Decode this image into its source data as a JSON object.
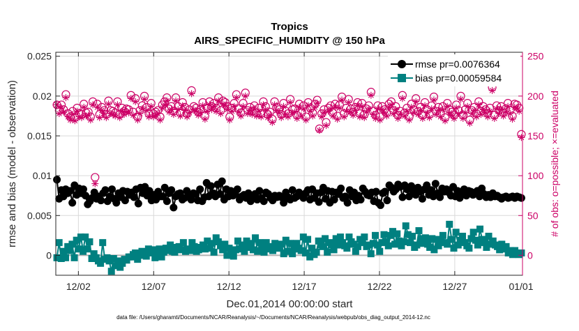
{
  "chart_data": {
    "type": "line",
    "title": "Tropics",
    "subtitle": "AIRS_SPECIFIC_HUMIDITY @ 150 hPa",
    "xlabel": "Dec.01,2014 00:00:00 start",
    "ylabel": "rmse and bias (model - observation)",
    "ylabel_right": "# of obs: o=possible; ×=evaluated",
    "footnote": "data file: /Users/gharamti/Documents/NCAR/Reanalysis/~/Documents/NCAR/Reanalysis/webpub/obs_diag_output_2014-12.nc",
    "xlim": [
      0.5,
      31.5
    ],
    "ylim": [
      -0.0025,
      0.0255
    ],
    "ylim_right": [
      -25,
      255
    ],
    "x_ticks": [
      {
        "v": 2,
        "label": "12/02"
      },
      {
        "v": 7,
        "label": "12/07"
      },
      {
        "v": 12,
        "label": "12/12"
      },
      {
        "v": 17,
        "label": "12/17"
      },
      {
        "v": 22,
        "label": "12/22"
      },
      {
        "v": 27,
        "label": "12/27"
      },
      {
        "v": 32,
        "label": "01/01"
      }
    ],
    "y_ticks": [
      {
        "v": 0,
        "label": "0"
      },
      {
        "v": 0.005,
        "label": "0.005"
      },
      {
        "v": 0.01,
        "label": "0.01"
      },
      {
        "v": 0.015,
        "label": "0.015"
      },
      {
        "v": 0.02,
        "label": "0.02"
      },
      {
        "v": 0.025,
        "label": "0.025"
      }
    ],
    "y_ticks_right": [
      {
        "v": 0,
        "label": "0"
      },
      {
        "v": 50,
        "label": "50"
      },
      {
        "v": 100,
        "label": "100"
      },
      {
        "v": 150,
        "label": "150"
      },
      {
        "v": 200,
        "label": "200"
      },
      {
        "v": 250,
        "label": "250"
      }
    ],
    "legend_position": "top-right",
    "zero_line": 0,
    "series": [
      {
        "name": "rmse pr=0.0076364",
        "color": "#000000",
        "marker": "circle",
        "axis": "left",
        "values": [
          0.0095,
          0.0071,
          0.0082,
          0.0074,
          0.0083,
          0.0078,
          0.0081,
          0.0066,
          0.0088,
          0.0076,
          0.0084,
          0.0078,
          0.0083,
          0.0075,
          0.0064,
          0.0068,
          0.0072,
          0.0079,
          0.0071,
          0.0074,
          0.0069,
          0.0078,
          0.0082,
          0.0068,
          0.0074,
          0.0083,
          0.0071,
          0.0066,
          0.0078,
          0.0073,
          0.0081,
          0.0069,
          0.008,
          0.0076,
          0.0079,
          0.0073,
          0.0083,
          0.0065,
          0.0085,
          0.0078,
          0.0086,
          0.0075,
          0.0081,
          0.0069,
          0.0076,
          0.007,
          0.008,
          0.0074,
          0.0074,
          0.0085,
          0.0068,
          0.0078,
          0.0082,
          0.006,
          0.0074,
          0.0077,
          0.0078,
          0.007,
          0.0072,
          0.0081,
          0.0074,
          0.007,
          0.0078,
          0.0077,
          0.0069,
          0.0083,
          0.0068,
          0.0073,
          0.0091,
          0.0074,
          0.0087,
          0.0078,
          0.0074,
          0.0089,
          0.0077,
          0.0093,
          0.007,
          0.0083,
          0.0074,
          0.0081,
          0.0075,
          0.0077,
          0.0083,
          0.007,
          0.0074,
          0.0076,
          0.0072,
          0.0078,
          0.0068,
          0.0075,
          0.0077,
          0.007,
          0.0081,
          0.0072,
          0.0068,
          0.0079,
          0.0077,
          0.0072,
          0.0069,
          0.0075,
          0.0073,
          0.0075,
          0.0073,
          0.0066,
          0.0079,
          0.0073,
          0.007,
          0.0082,
          0.0072,
          0.0074,
          0.0079,
          0.0076,
          0.0072,
          0.0078,
          0.0082,
          0.007,
          0.0083,
          0.0072,
          0.0078,
          0.0067,
          0.0079,
          0.0085,
          0.0071,
          0.0081,
          0.0066,
          0.008,
          0.007,
          0.0079,
          0.0077,
          0.0084,
          0.0072,
          0.0074,
          0.0066,
          0.0082,
          0.0074,
          0.0079,
          0.0069,
          0.0075,
          0.007,
          0.0084,
          0.008,
          0.0076,
          0.0075,
          0.0079,
          0.0068,
          0.008,
          0.0066,
          0.0063,
          0.0078,
          0.008,
          0.0069,
          0.0088,
          0.0085,
          0.008,
          0.0083,
          0.0089,
          0.0086,
          0.0073,
          0.0088,
          0.0083,
          0.0074,
          0.0087,
          0.008,
          0.0076,
          0.0085,
          0.008,
          0.0071,
          0.0083,
          0.0088,
          0.0076,
          0.0082,
          0.0074,
          0.009,
          0.0078,
          0.0073,
          0.0084,
          0.008,
          0.0083,
          0.0079,
          0.0075,
          0.0086,
          0.0074,
          0.0081,
          0.0072,
          0.0079,
          0.0083,
          0.0075,
          0.0081,
          0.008,
          0.0076,
          0.0079,
          0.0081,
          0.0074,
          0.0084,
          0.0077,
          0.0073,
          0.0076,
          0.0073,
          0.0078,
          0.0074,
          0.0075,
          0.0073,
          0.0071,
          0.0073,
          0.0074,
          0.0072,
          0.0073,
          0.0074,
          0.0072,
          0.0074,
          0.0073,
          0.0072
        ]
      },
      {
        "name": "bias pr=0.00059584",
        "color": "#008080",
        "marker": "square",
        "axis": "left",
        "values": [
          -0.0003,
          0.0016,
          -0.0004,
          0.0005,
          -0.0003,
          0.0011,
          0.0006,
          0.0014,
          -0.0003,
          0.0019,
          0.0008,
          0.0023,
          0.0005,
          0.0023,
          0.0008,
          0.0017,
          -0.0004,
          0.0002,
          -0.0003,
          -0.0007,
          -0.001,
          0.0016,
          -0.0005,
          -0.0003,
          -0.0007,
          -0.002,
          -0.0004,
          -0.0013,
          -0.0007,
          -0.0015,
          -0.001,
          -0.0005,
          -0.0006,
          -0.0002,
          -0.0002,
          0.0001,
          0.0003,
          -0.0005,
          0.0,
          0.0005,
          0.0004,
          -0.0001,
          0.0008,
          0.0003,
          0.0007,
          -0.0003,
          0.0005,
          0.0008,
          -0.0002,
          0.0004,
          0.0009,
          0.0006,
          0.0013,
          0.0005,
          0.0004,
          0.001,
          0.0011,
          0.0007,
          0.0016,
          0.0005,
          0.0008,
          0.0006,
          0.0016,
          0.0011,
          0.0005,
          0.0007,
          0.001,
          0.0013,
          0.0008,
          0.0018,
          0.0009,
          0.0015,
          0.0004,
          0.0022,
          0.0017,
          0.0012,
          0.0007,
          0.0014,
          0.0,
          0.0009,
          0.0005,
          -0.0001,
          0.0007,
          0.0018,
          0.0008,
          0.0013,
          0.0005,
          0.0018,
          0.001,
          0.0015,
          0.0007,
          0.0022,
          0.0005,
          0.0016,
          0.001,
          0.0004,
          0.0016,
          0.0008,
          0.0011,
          0.0006,
          0.0015,
          0.0009,
          0.0009,
          0.0014,
          0.0002,
          0.0019,
          0.0005,
          0.0015,
          0.0002,
          0.0008,
          0.0015,
          0.0009,
          0.0006,
          0.0023,
          0.0003,
          0.002,
          -0.0002,
          0.0009,
          0.0001,
          0.0004,
          0.0018,
          0.0013,
          0.0011,
          0.0021,
          0.0004,
          0.0016,
          0.0013,
          0.0007,
          0.0021,
          0.0013,
          0.0023,
          0.0016,
          0.0012,
          0.0009,
          0.0023,
          0.0017,
          0.0014,
          0.0005,
          0.0011,
          0.002,
          0.0016,
          0.0023,
          0.0011,
          0.0013,
          0.0002,
          0.0015,
          0.0025,
          0.0013,
          0.0005,
          0.0016,
          0.0026,
          0.0017,
          0.0012,
          0.0025,
          0.003,
          0.0014,
          0.0027,
          0.0018,
          0.0012,
          0.0017,
          0.0037,
          0.0026,
          0.0016,
          0.0024,
          0.001,
          0.0013,
          0.0031,
          0.0021,
          0.0015,
          0.0022,
          0.0014,
          0.001,
          0.0021,
          0.0007,
          0.002,
          0.0012,
          0.0018,
          0.0025,
          0.0016,
          0.0014,
          0.0039,
          0.002,
          0.0009,
          0.0029,
          0.0013,
          0.0019,
          0.0024,
          0.0016,
          0.0012,
          0.0009,
          0.0021,
          0.0029,
          0.0019,
          0.0013,
          0.0033,
          0.002,
          0.0016,
          0.001,
          0.0024,
          0.0014,
          0.0018,
          0.0013,
          0.0011,
          0.0007,
          0.0014,
          0.0008,
          0.0011,
          0.0003,
          0.0006,
          0.0001,
          0.0006,
          0.0002,
          0.0001,
          0.0003
        ]
      },
      {
        "name": "obs possible",
        "color": "#cc0066",
        "marker": "circle-open",
        "axis": "right",
        "values": [
          189,
          182,
          189,
          183,
          202,
          178,
          174,
          181,
          173,
          185,
          178,
          177,
          190,
          179,
          180,
          174,
          193,
          98,
          190,
          177,
          186,
          182,
          177,
          194,
          182,
          181,
          179,
          193,
          177,
          185,
          181,
          184,
          183,
          201,
          180,
          197,
          174,
          182,
          188,
          200,
          186,
          178,
          191,
          178,
          180,
          182,
          174,
          189,
          193,
          198,
          184,
          187,
          181,
          198,
          187,
          179,
          192,
          186,
          178,
          183,
          207,
          187,
          185,
          180,
          183,
          192,
          175,
          185,
          193,
          187,
          191,
          185,
          198,
          182,
          194,
          192,
          187,
          174,
          185,
          191,
          202,
          184,
          179,
          191,
          204,
          182,
          186,
          181,
          188,
          179,
          185,
          178,
          193,
          187,
          177,
          180,
          171,
          193,
          186,
          183,
          177,
          191,
          181,
          178,
          196,
          183,
          184,
          176,
          190,
          179,
          188,
          174,
          192,
          185,
          179,
          190,
          195,
          159,
          178,
          183,
          167,
          185,
          188,
          179,
          190,
          175,
          189,
          199,
          178,
          185,
          196,
          184,
          180,
          186,
          192,
          178,
          191,
          177,
          184,
          188,
          205,
          181,
          176,
          188,
          174,
          187,
          183,
          179,
          190,
          193,
          182,
          187,
          176,
          181,
          201,
          179,
          185,
          174,
          190,
          183,
          197,
          181,
          186,
          176,
          192,
          183,
          177,
          188,
          199,
          181,
          186,
          178,
          187,
          173,
          191,
          183,
          180,
          176,
          189,
          182,
          200,
          176,
          183,
          191,
          170,
          182,
          186,
          178,
          193,
          181,
          187,
          183,
          178,
          185,
          211,
          176,
          188,
          182,
          187,
          179,
          184,
          191,
          182,
          175,
          190,
          189,
          185,
          152
        ]
      },
      {
        "name": "obs evaluated",
        "color": "#cc0066",
        "marker": "asterisk",
        "axis": "right",
        "values": [
          189,
          178,
          185,
          180,
          198,
          174,
          170,
          177,
          169,
          181,
          174,
          173,
          186,
          175,
          176,
          170,
          189,
          90,
          186,
          173,
          182,
          178,
          173,
          190,
          178,
          177,
          175,
          189,
          173,
          181,
          177,
          180,
          179,
          197,
          176,
          193,
          170,
          178,
          184,
          196,
          182,
          174,
          187,
          174,
          176,
          178,
          170,
          185,
          189,
          194,
          180,
          183,
          177,
          194,
          183,
          175,
          188,
          182,
          174,
          179,
          203,
          183,
          181,
          176,
          179,
          188,
          171,
          181,
          189,
          183,
          187,
          181,
          194,
          178,
          190,
          188,
          183,
          170,
          181,
          187,
          198,
          180,
          175,
          187,
          200,
          178,
          182,
          177,
          184,
          175,
          181,
          174,
          189,
          183,
          173,
          176,
          167,
          189,
          182,
          179,
          173,
          187,
          177,
          174,
          192,
          179,
          180,
          172,
          186,
          175,
          184,
          170,
          188,
          181,
          175,
          186,
          191,
          157,
          174,
          179,
          163,
          181,
          184,
          175,
          186,
          171,
          185,
          195,
          174,
          181,
          192,
          180,
          176,
          182,
          188,
          174,
          187,
          173,
          180,
          184,
          201,
          177,
          172,
          184,
          170,
          183,
          179,
          175,
          186,
          189,
          178,
          183,
          172,
          177,
          197,
          175,
          181,
          170,
          186,
          179,
          193,
          177,
          182,
          172,
          188,
          179,
          173,
          184,
          195,
          177,
          182,
          174,
          183,
          169,
          187,
          179,
          176,
          172,
          185,
          178,
          196,
          172,
          179,
          187,
          166,
          178,
          182,
          174,
          189,
          177,
          183,
          179,
          174,
          181,
          207,
          172,
          184,
          178,
          183,
          175,
          180,
          187,
          178,
          171,
          186,
          185,
          181,
          148
        ]
      }
    ]
  }
}
